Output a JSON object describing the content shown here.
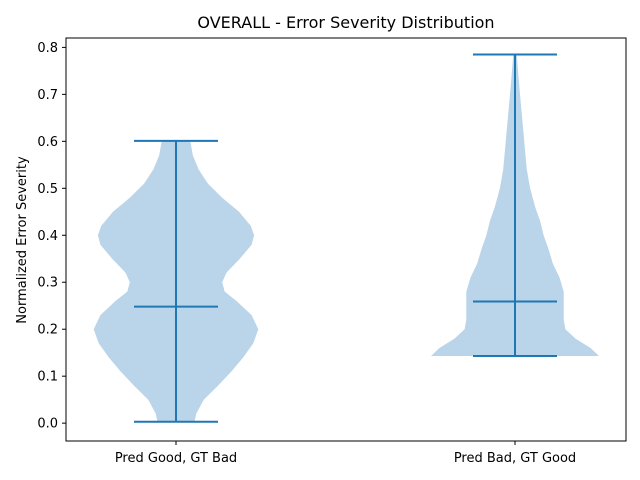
{
  "chart_data": {
    "type": "violin",
    "title": "OVERALL - Error Severity Distribution",
    "xlabel": "",
    "ylabel": "Normalized Error Severity",
    "ylim": [
      -0.038,
      0.82
    ],
    "yticks": [
      "0.0",
      "0.1",
      "0.2",
      "0.3",
      "0.4",
      "0.5",
      "0.6",
      "0.7",
      "0.8"
    ],
    "ytick_values": [
      0.0,
      0.1,
      0.2,
      0.3,
      0.4,
      0.5,
      0.6,
      0.7,
      0.8
    ],
    "categories": [
      "Pred Good, GT Bad",
      "Pred Bad, GT Good"
    ],
    "colors": {
      "body": "#bad4e9",
      "lines": "#1f77b4"
    },
    "violins": [
      {
        "label": "Pred Good, GT Bad",
        "min": 0.003,
        "median": 0.248,
        "max": 0.601,
        "density": [
          [
            0.003,
            0.22
          ],
          [
            0.02,
            0.24
          ],
          [
            0.05,
            0.33
          ],
          [
            0.08,
            0.5
          ],
          [
            0.11,
            0.66
          ],
          [
            0.14,
            0.8
          ],
          [
            0.17,
            0.92
          ],
          [
            0.2,
            0.98
          ],
          [
            0.23,
            0.9
          ],
          [
            0.26,
            0.72
          ],
          [
            0.28,
            0.58
          ],
          [
            0.3,
            0.55
          ],
          [
            0.32,
            0.6
          ],
          [
            0.35,
            0.76
          ],
          [
            0.38,
            0.9
          ],
          [
            0.4,
            0.93
          ],
          [
            0.42,
            0.89
          ],
          [
            0.45,
            0.75
          ],
          [
            0.48,
            0.55
          ],
          [
            0.51,
            0.38
          ],
          [
            0.54,
            0.27
          ],
          [
            0.57,
            0.2
          ],
          [
            0.601,
            0.17
          ]
        ]
      },
      {
        "label": "Pred Bad, GT Good",
        "min": 0.143,
        "median": 0.259,
        "max": 0.785,
        "density": [
          [
            0.143,
            1.0
          ],
          [
            0.16,
            0.9
          ],
          [
            0.18,
            0.72
          ],
          [
            0.2,
            0.6
          ],
          [
            0.22,
            0.58
          ],
          [
            0.25,
            0.58
          ],
          [
            0.28,
            0.58
          ],
          [
            0.31,
            0.53
          ],
          [
            0.34,
            0.45
          ],
          [
            0.37,
            0.4
          ],
          [
            0.4,
            0.34
          ],
          [
            0.43,
            0.3
          ],
          [
            0.46,
            0.24
          ],
          [
            0.5,
            0.18
          ],
          [
            0.54,
            0.14
          ],
          [
            0.58,
            0.12
          ],
          [
            0.62,
            0.1
          ],
          [
            0.66,
            0.08
          ],
          [
            0.7,
            0.06
          ],
          [
            0.74,
            0.04
          ],
          [
            0.785,
            0.02
          ]
        ]
      }
    ]
  }
}
